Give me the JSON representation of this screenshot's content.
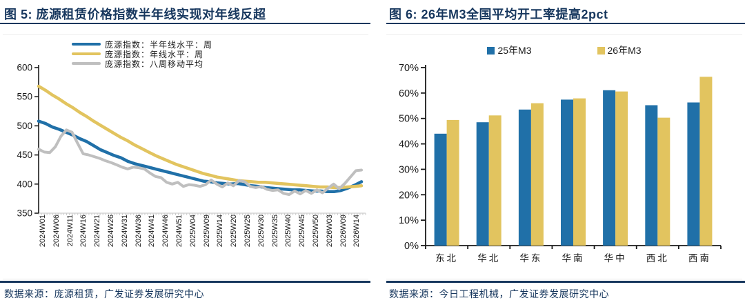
{
  "chart_data": [
    {
      "type": "line",
      "title": "图 5: 庞源租赁价格指数半年线实现对年线反超",
      "ylim": [
        350,
        600
      ],
      "yticks": [
        350,
        400,
        450,
        500,
        550,
        600
      ],
      "grid": false,
      "legend_position": "top-left-inside",
      "xticklabels": [
        "2024W01",
        "2024W06",
        "2024W11",
        "2024W16",
        "2024W21",
        "2024W26",
        "2024W31",
        "2024W36",
        "2024W41",
        "2024W46",
        "2024W51",
        "2025W04",
        "2025W09",
        "2025W14",
        "2025W20",
        "2025W25",
        "2025W30",
        "2025W35",
        "2025W40",
        "2025W45",
        "2025W50",
        "2026W03",
        "2026W09",
        "2026W14"
      ],
      "series": [
        {
          "name": "庞源指数：半年线水平：周",
          "color": "#2070A8",
          "width": 4.5,
          "values": [
            508,
            504,
            498,
            494,
            489,
            484,
            478,
            473,
            466,
            459,
            454,
            449,
            445,
            439,
            435,
            432,
            429,
            426,
            423,
            420,
            417,
            414,
            411,
            408,
            405,
            404,
            402,
            401,
            400,
            401,
            399,
            397,
            396,
            394,
            393,
            392,
            391,
            390,
            390,
            389,
            388,
            388,
            387,
            387,
            389,
            393,
            398,
            404
          ]
        },
        {
          "name": "庞源指数：年线水平：周",
          "color": "#E2C45F",
          "width": 4.5,
          "values": [
            568,
            561,
            553,
            546,
            538,
            531,
            523,
            516,
            508,
            501,
            494,
            487,
            480,
            474,
            467,
            461,
            455,
            449,
            444,
            439,
            434,
            430,
            426,
            422,
            418,
            415,
            412,
            410,
            408,
            406,
            405,
            404,
            403,
            403,
            402,
            401,
            400,
            399,
            398,
            397,
            396,
            395,
            395,
            394,
            394,
            395,
            396,
            397
          ]
        },
        {
          "name": "庞源指数：八周移动平均",
          "color": "#BFBFBF",
          "width": 4,
          "values": [
            460,
            455,
            454,
            464,
            482,
            493,
            489,
            470,
            452,
            450,
            447,
            444,
            440,
            437,
            433,
            429,
            426,
            429,
            428,
            426,
            419,
            413,
            411,
            403,
            400,
            403,
            396,
            399,
            398,
            396,
            399,
            407,
            400,
            395,
            402,
            397,
            406,
            404,
            396,
            394,
            396,
            391,
            389,
            390,
            384,
            382,
            388,
            383,
            389,
            384,
            390,
            385,
            393,
            400,
            392,
            401,
            412,
            423,
            424
          ]
        }
      ]
    },
    {
      "type": "bar",
      "title": "图 6: 26年M3全国平均开工率提高2pct",
      "categories": [
        "东北",
        "华北",
        "华东",
        "华南",
        "华中",
        "西北",
        "西南"
      ],
      "ylim": [
        0,
        70
      ],
      "yticks": [
        "0%",
        "10%",
        "20%",
        "30%",
        "40%",
        "50%",
        "60%",
        "70%"
      ],
      "grid": false,
      "legend_position": "top",
      "series": [
        {
          "name": "25年M3",
          "color": "#2070A8",
          "values": [
            44,
            48.5,
            53.5,
            57.4,
            61.1,
            55.2,
            56.3
          ]
        },
        {
          "name": "26年M3",
          "color": "#E2C45F",
          "values": [
            49.4,
            51.2,
            56.0,
            57.9,
            60.6,
            50.3,
            66.4
          ]
        }
      ]
    }
  ],
  "figure5": {
    "source_label": "数据来源：庞源租赁，广发证券发展研究中心"
  },
  "figure6": {
    "source_label": "数据来源：今日工程机械，广发证券发展研究中心"
  },
  "colors": {
    "accent_navy": "#17375E",
    "series_blue": "#2070A8",
    "series_yellow": "#E2C45F",
    "series_gray": "#BFBFBF",
    "axis_black": "#1a1a1a",
    "axis_light_gray": "#CCCCCC"
  }
}
